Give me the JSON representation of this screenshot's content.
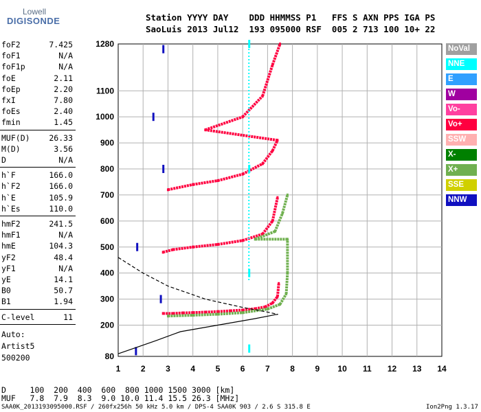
{
  "logo": {
    "top": "Lowell",
    "bottom": "DIGISONDE"
  },
  "header": {
    "row1": "Station YYYY DAY    DDD HHMMSS P1   FFS S AXN PPS IGA PS",
    "row2": "SaoLuis 2013 Jul12  193 095000 RSF  005 2 713 100 10+ 22"
  },
  "params": {
    "group1": [
      {
        "k": "foF2",
        "v": "7.425"
      },
      {
        "k": "foF1",
        "v": "N/A"
      },
      {
        "k": "foF1p",
        "v": "N/A"
      },
      {
        "k": "foE",
        "v": "2.11"
      },
      {
        "k": "foEp",
        "v": "2.20"
      },
      {
        "k": "fxI",
        "v": "7.80"
      },
      {
        "k": "foEs",
        "v": "2.40"
      },
      {
        "k": "fmin",
        "v": "1.45"
      }
    ],
    "group2": [
      {
        "k": "MUF(D)",
        "v": "26.33"
      },
      {
        "k": "M(D)",
        "v": "3.56"
      },
      {
        "k": "D",
        "v": "N/A"
      }
    ],
    "group3": [
      {
        "k": "h`F",
        "v": "166.0"
      },
      {
        "k": "h`F2",
        "v": "166.0"
      },
      {
        "k": "h`E",
        "v": "105.9"
      },
      {
        "k": "h`Es",
        "v": "110.0"
      }
    ],
    "group4": [
      {
        "k": "hmF2",
        "v": "241.5"
      },
      {
        "k": "hmF1",
        "v": "N/A"
      },
      {
        "k": "hmE",
        "v": "104.3"
      },
      {
        "k": "yF2",
        "v": "48.4"
      },
      {
        "k": "yF1",
        "v": "N/A"
      },
      {
        "k": "yE",
        "v": "14.1"
      },
      {
        "k": "B0",
        "v": "50.7"
      },
      {
        "k": "B1",
        "v": "1.94"
      }
    ],
    "group5": [
      {
        "k": "C-level",
        "v": "11"
      }
    ]
  },
  "auto": {
    "line1": "Auto:",
    "line2": "Artist5",
    "line3": "500200"
  },
  "footer": {
    "d_row": "D     100  200  400  600  800 1000 1500 3000 [km]",
    "muf_row": "MUF   7.8  7.9  8.3  9.0 10.0 11.4 15.5 26.3 [MHz]",
    "file_row": "SAA0K_2013193095000.RSF / 260fx256h 50 kHz 5.0 km / DPS-4 SAA0K 903 / 2.6 S 315.8 E",
    "version": "Ion2Png 1.3.17"
  },
  "legend": [
    {
      "label": "NoVal",
      "color": "#a0a0a0"
    },
    {
      "label": "NNE",
      "color": "#00ffff"
    },
    {
      "label": "E",
      "color": "#30a0ff"
    },
    {
      "label": "W",
      "color": "#a000a0"
    },
    {
      "label": "Vo-",
      "color": "#ff40a0"
    },
    {
      "label": "Vo+",
      "color": "#ff0040"
    },
    {
      "label": "SSW",
      "color": "#ffb0b0"
    },
    {
      "label": "X-",
      "color": "#008000"
    },
    {
      "label": "X+",
      "color": "#70b050"
    },
    {
      "label": "SSE",
      "color": "#d0d000"
    },
    {
      "label": "NNW",
      "color": "#1010c0"
    }
  ],
  "chart_data": {
    "type": "scatter",
    "xlim": [
      1,
      14
    ],
    "ylim": [
      80,
      1280
    ],
    "xticks": [
      "1",
      "2",
      "3",
      "4",
      "5",
      "6",
      "7",
      "8",
      "9",
      "10",
      "11",
      "12",
      "13",
      "14"
    ],
    "yticks": [
      "80",
      "200",
      "300",
      "400",
      "500",
      "600",
      "700",
      "800",
      "900",
      "1000",
      "1100",
      "1280"
    ],
    "grid": true,
    "series": [
      {
        "name": "Vo+",
        "points": [
          [
            2.8,
            245
          ],
          [
            3.2,
            245
          ],
          [
            3.6,
            247
          ],
          [
            4.0,
            248
          ],
          [
            4.5,
            250
          ],
          [
            5.0,
            252
          ],
          [
            5.5,
            255
          ],
          [
            6.0,
            258
          ],
          [
            6.5,
            263
          ],
          [
            6.9,
            270
          ],
          [
            7.2,
            285
          ],
          [
            7.4,
            310
          ],
          [
            7.45,
            360
          ],
          [
            2.8,
            480
          ],
          [
            3.2,
            490
          ],
          [
            4.0,
            500
          ],
          [
            5.0,
            510
          ],
          [
            6.0,
            525
          ],
          [
            6.8,
            550
          ],
          [
            7.2,
            600
          ],
          [
            7.4,
            690
          ],
          [
            3.0,
            720
          ],
          [
            4.0,
            740
          ],
          [
            5.0,
            755
          ],
          [
            6.0,
            780
          ],
          [
            6.8,
            820
          ],
          [
            7.2,
            870
          ],
          [
            7.4,
            910
          ],
          [
            4.5,
            950
          ],
          [
            6.0,
            1000
          ],
          [
            6.8,
            1080
          ],
          [
            7.2,
            1200
          ],
          [
            7.5,
            1280
          ]
        ]
      },
      {
        "name": "X+",
        "points": [
          [
            3.0,
            235
          ],
          [
            4.0,
            238
          ],
          [
            5.0,
            242
          ],
          [
            6.0,
            248
          ],
          [
            7.0,
            262
          ],
          [
            7.5,
            280
          ],
          [
            7.75,
            320
          ],
          [
            7.8,
            400
          ],
          [
            7.8,
            530
          ],
          [
            6.5,
            530
          ],
          [
            7.3,
            560
          ],
          [
            7.6,
            630
          ],
          [
            7.8,
            700
          ]
        ]
      },
      {
        "name": "NNE",
        "points": [
          [
            6.25,
            110
          ],
          [
            6.25,
            400
          ],
          [
            6.25,
            800
          ],
          [
            6.25,
            1280
          ]
        ]
      },
      {
        "name": "NNW",
        "points": [
          [
            1.7,
            100
          ],
          [
            1.75,
            500
          ],
          [
            2.7,
            300
          ],
          [
            2.8,
            800
          ],
          [
            2.8,
            1260
          ],
          [
            2.4,
            1000
          ]
        ]
      }
    ],
    "profile": {
      "name": "electron density profile",
      "points": [
        [
          1,
          90
        ],
        [
          2.5,
          140
        ],
        [
          3.5,
          175
        ],
        [
          5.0,
          200
        ],
        [
          6.5,
          225
        ],
        [
          7.3,
          240
        ],
        [
          7.42,
          241.5
        ]
      ]
    },
    "profile_extrap": {
      "points": [
        [
          1,
          460
        ],
        [
          2.0,
          400
        ],
        [
          3.0,
          350
        ],
        [
          4.5,
          300
        ],
        [
          6.0,
          268
        ],
        [
          7.0,
          250
        ],
        [
          7.42,
          241.5
        ]
      ]
    }
  }
}
